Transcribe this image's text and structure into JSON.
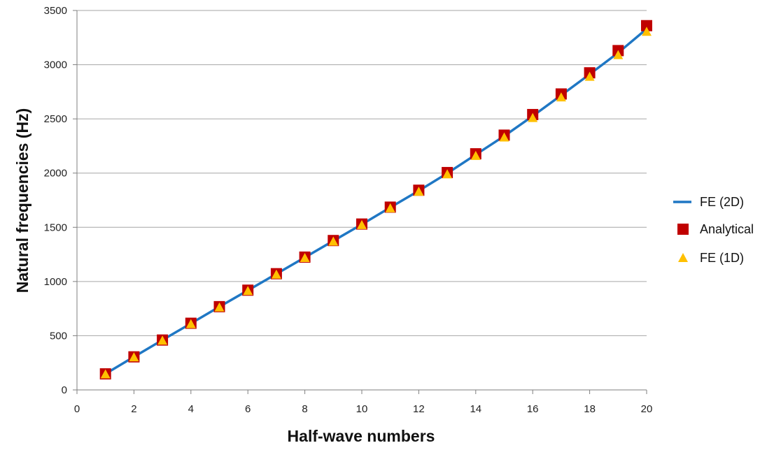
{
  "chart_data": {
    "type": "line",
    "xlabel": "Half-wave numbers",
    "ylabel": "Natural frequencies (Hz)",
    "xlim": [
      0,
      20
    ],
    "ylim": [
      0,
      3500
    ],
    "xticks": [
      0,
      2,
      4,
      6,
      8,
      10,
      12,
      14,
      16,
      18,
      20
    ],
    "yticks": [
      0,
      500,
      1000,
      1500,
      2000,
      2500,
      3000,
      3500
    ],
    "grid": "horizontal",
    "legend": "right",
    "x": [
      1,
      2,
      3,
      4,
      5,
      6,
      7,
      8,
      9,
      10,
      11,
      12,
      13,
      14,
      15,
      16,
      17,
      18,
      19,
      20
    ],
    "series": [
      {
        "name": "FE (2D)",
        "style": "line",
        "color": "#1f77c4",
        "values": [
          148,
          305,
          460,
          613,
          767,
          918,
          1070,
          1222,
          1375,
          1527,
          1683,
          1837,
          1998,
          2170,
          2342,
          2526,
          2718,
          2912,
          3110,
          3330
        ]
      },
      {
        "name": "Analytical",
        "style": "square",
        "color": "#c00000",
        "values": [
          148,
          305,
          460,
          615,
          768,
          920,
          1072,
          1225,
          1378,
          1530,
          1686,
          1842,
          2005,
          2178,
          2350,
          2540,
          2730,
          2925,
          3130,
          3360
        ]
      },
      {
        "name": "FE (1D)",
        "style": "triangle",
        "color": "#ffc000",
        "values": [
          145,
          302,
          456,
          608,
          762,
          914,
          1065,
          1218,
          1370,
          1522,
          1677,
          1830,
          1990,
          2160,
          2330,
          2510,
          2700,
          2890,
          3090,
          3305
        ]
      }
    ]
  }
}
